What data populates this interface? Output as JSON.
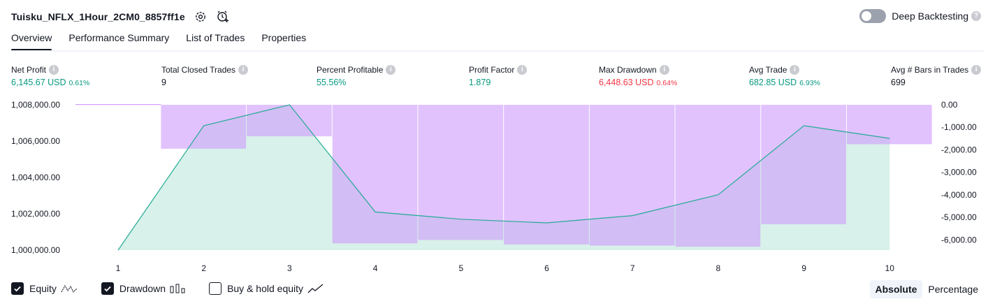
{
  "header": {
    "title": "Tuisku_NFLX_1Hour_2CM0_8857ff1e",
    "deep_backtesting_label": "Deep Backtesting",
    "deep_backtesting_on": false,
    "help_glyph": "?"
  },
  "tabs": [
    {
      "label": "Overview",
      "active": true
    },
    {
      "label": "Performance Summary",
      "active": false
    },
    {
      "label": "List of Trades",
      "active": false
    },
    {
      "label": "Properties",
      "active": false
    }
  ],
  "metrics": {
    "net_profit": {
      "label": "Net Profit",
      "value": "6,145.67 USD",
      "pct": "0.61%"
    },
    "total_closed_trades": {
      "label": "Total Closed Trades",
      "value": "9"
    },
    "percent_profitable": {
      "label": "Percent Profitable",
      "value": "55.56%"
    },
    "profit_factor": {
      "label": "Profit Factor",
      "value": "1.879"
    },
    "max_drawdown": {
      "label": "Max Drawdown",
      "value": "6,448.63 USD",
      "pct": "0.64%"
    },
    "avg_trade": {
      "label": "Avg Trade",
      "value": "682.85 USD",
      "pct": "6.93%"
    },
    "avg_bars": {
      "label": "Avg # Bars in Trades",
      "value": "699"
    }
  },
  "legend": {
    "equity": {
      "label": "Equity",
      "checked": true
    },
    "drawdown": {
      "label": "Drawdown",
      "checked": true
    },
    "buy_hold": {
      "label": "Buy & hold equity",
      "checked": false
    }
  },
  "modes": {
    "absolute": "Absolute",
    "percentage": "Percentage",
    "selected": "Absolute"
  },
  "colors": {
    "equity_line": "#22ab94",
    "equity_fill": "#d8f1ea",
    "drawdown_fill": "#ce9cfb",
    "profit_green": "#089981",
    "loss_red": "#f23645"
  },
  "chart_data": {
    "type": "area",
    "x": [
      1,
      2,
      3,
      4,
      5,
      6,
      7,
      8,
      9,
      10
    ],
    "x_ticks": [
      "1",
      "2",
      "3",
      "4",
      "5",
      "6",
      "7",
      "8",
      "9",
      "10"
    ],
    "series": [
      {
        "name": "Equity",
        "axis": "left",
        "values": [
          1000000,
          1006850,
          1008000,
          1002100,
          1001700,
          1001500,
          1001900,
          1003050,
          1006850,
          1006150
        ]
      },
      {
        "name": "Drawdown",
        "axis": "right",
        "values": [
          0,
          -1950,
          -1400,
          -6150,
          -6000,
          -6200,
          -6250,
          -6300,
          -5300,
          -1750
        ]
      }
    ],
    "left_axis": {
      "ylim": [
        1000000,
        1008000
      ],
      "ticks": [
        "1,008,000.00",
        "1,006,000.00",
        "1,004,000.00",
        "1,002,000.00",
        "1,000,000.00"
      ],
      "tick_values": [
        1008000,
        1006000,
        1004000,
        1002000,
        1000000
      ]
    },
    "right_axis": {
      "ylim": [
        -6450,
        0
      ],
      "ticks": [
        "0.00",
        "-1,000.00",
        "-2,000.00",
        "-3,000.00",
        "-4,000.00",
        "-5,000.00",
        "-6,000.00"
      ],
      "tick_values": [
        0,
        -1000,
        -2000,
        -3000,
        -4000,
        -5000,
        -6000
      ]
    },
    "legend_placement": "bottom-left"
  }
}
